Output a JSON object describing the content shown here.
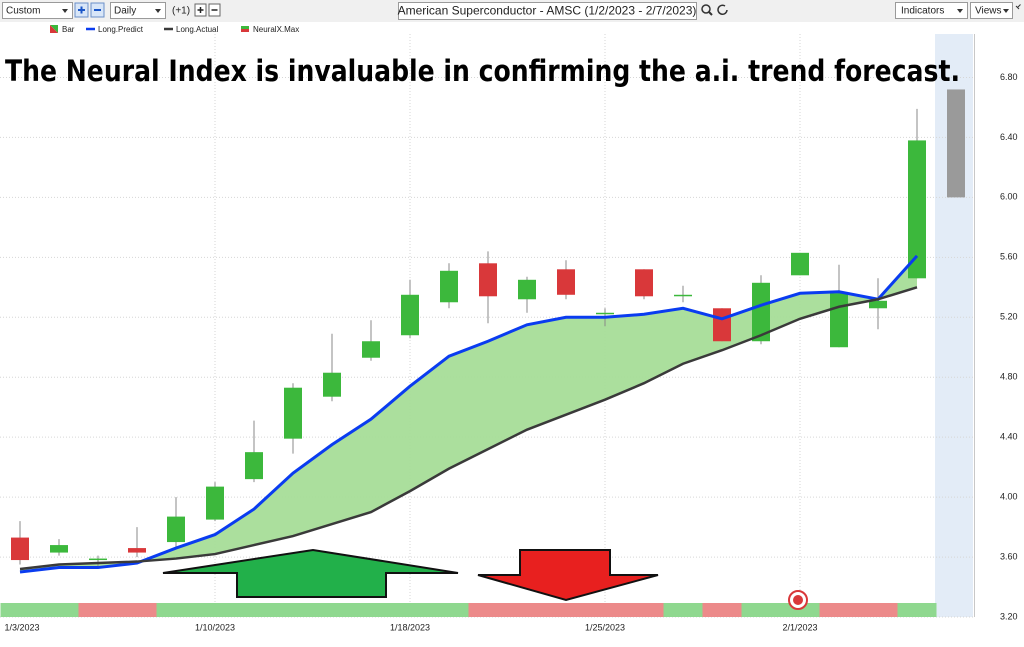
{
  "toolbar": {
    "range": "Custom",
    "interval": "Daily",
    "offset": "(+1)",
    "symbol": "American Superconductor - AMSC (1/2/2023 - 2/7/2023)",
    "indicators": "Indicators",
    "views": "Views"
  },
  "chart_data": {
    "type": "candlestick",
    "title": "The Neural Index is invaluable in confirming the a.i. trend forecast.",
    "categories": [
      "1/3/2023",
      null,
      null,
      null,
      null,
      "1/10/2023",
      null,
      null,
      null,
      null,
      "1/18/2023",
      null,
      null,
      null,
      null,
      "1/25/2023",
      null,
      null,
      null,
      null,
      "2/1/2023",
      null,
      null,
      null
    ],
    "series": [
      {
        "name": "Bar",
        "up_color": "#3cb83c",
        "down_color": "#d9383a",
        "open": [
          3.73,
          3.63,
          3.58,
          3.66,
          3.7,
          3.85,
          4.12,
          4.39,
          4.67,
          4.93,
          5.08,
          5.3,
          5.56,
          5.32,
          5.52,
          5.22,
          5.52,
          5.34,
          5.26,
          5.04,
          5.48,
          5.0,
          5.26,
          5.46
        ],
        "high": [
          3.84,
          3.72,
          3.61,
          3.8,
          4.0,
          4.1,
          4.51,
          4.76,
          5.09,
          5.18,
          5.45,
          5.56,
          5.64,
          5.47,
          5.58,
          5.26,
          5.52,
          5.41,
          5.26,
          5.48,
          5.63,
          5.55,
          5.46,
          6.59
        ],
        "low": [
          3.55,
          3.61,
          3.54,
          3.6,
          3.66,
          3.84,
          4.1,
          4.29,
          4.64,
          4.91,
          5.06,
          5.26,
          5.16,
          5.23,
          5.32,
          5.14,
          5.32,
          5.3,
          5.04,
          5.02,
          5.48,
          5.0,
          5.12,
          5.46
        ],
        "close": [
          3.58,
          3.68,
          3.59,
          3.63,
          3.87,
          4.07,
          4.3,
          4.73,
          4.83,
          5.04,
          5.35,
          5.51,
          5.34,
          5.45,
          5.35,
          5.23,
          5.34,
          5.35,
          5.04,
          5.43,
          5.63,
          5.36,
          5.31,
          6.38
        ]
      },
      {
        "name": "Long.Predict",
        "color": "#0a3cf0",
        "values": [
          3.5,
          3.53,
          3.53,
          3.56,
          3.66,
          3.75,
          3.92,
          4.16,
          4.35,
          4.52,
          4.74,
          4.94,
          5.04,
          5.15,
          5.2,
          5.2,
          5.22,
          5.26,
          5.19,
          5.28,
          5.36,
          5.37,
          5.32,
          5.61
        ]
      },
      {
        "name": "Long.Actual",
        "color": "#3a3a3a",
        "values": [
          3.52,
          3.55,
          3.56,
          3.57,
          3.59,
          3.62,
          3.68,
          3.74,
          3.82,
          3.9,
          4.04,
          4.19,
          4.32,
          4.45,
          4.55,
          4.65,
          4.76,
          4.89,
          4.98,
          5.08,
          5.19,
          5.27,
          5.32,
          5.4
        ]
      },
      {
        "name": "NeuralX.Max",
        "colors": [
          "#8fd88f",
          "#8fd88f",
          "#ec8a8a",
          "#ec8a8a",
          "#8fd88f",
          "#8fd88f",
          "#8fd88f",
          "#8fd88f",
          "#8fd88f",
          "#8fd88f",
          "#8fd88f",
          "#8fd88f",
          "#ec8a8a",
          "#ec8a8a",
          "#ec8a8a",
          "#ec8a8a",
          "#ec8a8a",
          "#8fd88f",
          "#ec8a8a",
          "#8fd88f",
          "#8fd88f",
          "#ec8a8a",
          "#ec8a8a",
          "#8fd88f"
        ]
      }
    ],
    "fill_color": "#a6dd98",
    "forecast": {
      "low": 6.0,
      "high": 6.72,
      "color": "#9a9a9a"
    },
    "ylim": [
      3.1,
      7.09
    ],
    "yticks": [
      {
        "value": 3.2,
        "label": "3.20"
      },
      {
        "value": 3.6,
        "label": "3.60"
      },
      {
        "value": 4.0,
        "label": "4.00"
      },
      {
        "value": 4.4,
        "label": "4.40"
      },
      {
        "value": 4.8,
        "label": "4.80"
      },
      {
        "value": 5.2,
        "label": "5.20"
      },
      {
        "value": 5.6,
        "label": "5.60"
      },
      {
        "value": 6.0,
        "label": "6.00"
      },
      {
        "value": 6.4,
        "label": "6.40"
      },
      {
        "value": 6.8,
        "label": "6.80"
      }
    ],
    "grid": true
  }
}
